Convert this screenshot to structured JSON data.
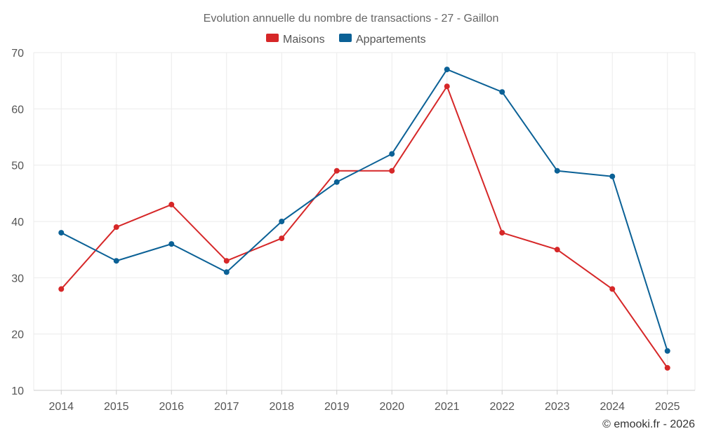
{
  "chart_data": {
    "type": "line",
    "title": "Evolution annuelle du nombre de transactions - 27 - Gaillon",
    "categories": [
      "2014",
      "2015",
      "2016",
      "2017",
      "2018",
      "2019",
      "2020",
      "2021",
      "2022",
      "2023",
      "2024",
      "2025"
    ],
    "series": [
      {
        "name": "Maisons",
        "color": "#d62728",
        "values": [
          28,
          39,
          43,
          33,
          37,
          49,
          49,
          64,
          38,
          35,
          28,
          14
        ]
      },
      {
        "name": "Appartements",
        "color": "#0b6196",
        "values": [
          38,
          33,
          36,
          31,
          40,
          47,
          52,
          67,
          63,
          49,
          48,
          17
        ]
      }
    ],
    "y_ticks": [
      10,
      20,
      30,
      40,
      50,
      60,
      70
    ],
    "ylim": [
      10,
      70
    ],
    "xlabel": "",
    "ylabel": "",
    "grid": true,
    "legend_position": "top-center"
  },
  "credit": "© emooki.fr - 2026"
}
